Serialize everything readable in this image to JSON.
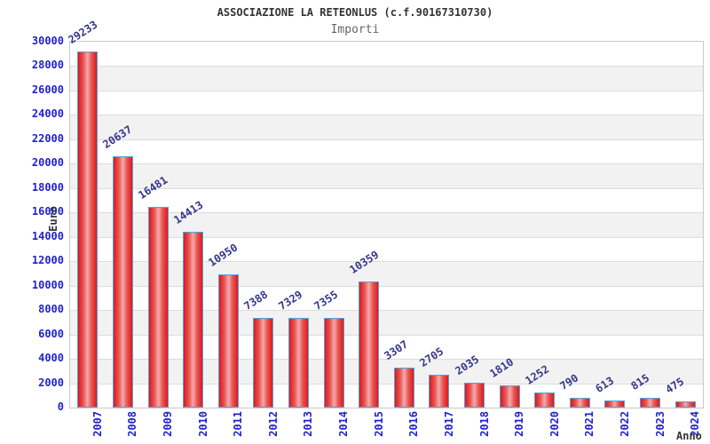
{
  "header": {
    "title": "ASSOCIAZIONE LA RETEONLUS (c.f.90167310730)",
    "subtitle": "Importi"
  },
  "chart_data": {
    "type": "bar",
    "title": "ASSOCIAZIONE LA RETEONLUS (c.f.90167310730)",
    "subtitle": "Importi",
    "xlabel": "Anno",
    "ylabel": "Euro",
    "categories": [
      "2007",
      "2008",
      "2009",
      "2010",
      "2011",
      "2012",
      "2013",
      "2014",
      "2015",
      "2016",
      "2017",
      "2018",
      "2019",
      "2020",
      "2021",
      "2022",
      "2023",
      "2024"
    ],
    "values": [
      29233,
      20637,
      16481,
      14413,
      10950,
      7388,
      7329,
      7355,
      10359,
      3307,
      2705,
      2035,
      1810,
      1252,
      790,
      613,
      815,
      475
    ],
    "bar_value_labels": [
      "29233",
      "20637",
      "16481",
      "14413",
      "10950",
      "7388",
      "7329",
      "7355",
      "10359",
      "3307",
      "2705",
      "2035",
      "1810",
      "1252",
      "790",
      "613",
      "815",
      "475"
    ],
    "ylim": [
      0,
      30000
    ],
    "ytick_step": 2000,
    "yticks": [
      0,
      2000,
      4000,
      6000,
      8000,
      10000,
      12000,
      14000,
      16000,
      18000,
      20000,
      22000,
      24000,
      26000,
      28000,
      30000
    ],
    "grid": true,
    "legend": "none",
    "banded_background": true,
    "colors": {
      "bar_fill": "#dc1a1a",
      "bar_mid": "#e95555",
      "bar_highlight": "#f5aaaa",
      "bar_border": "#58a0d8",
      "axis_tick_label": "#2222cc",
      "value_label": "#34348c",
      "band_alt": "#f2f2f2",
      "gridline": "#dcdcdc",
      "plot_border": "#c9c9c9",
      "title": "#333333",
      "subtitle": "#666666",
      "axis_title": "#333333"
    }
  }
}
